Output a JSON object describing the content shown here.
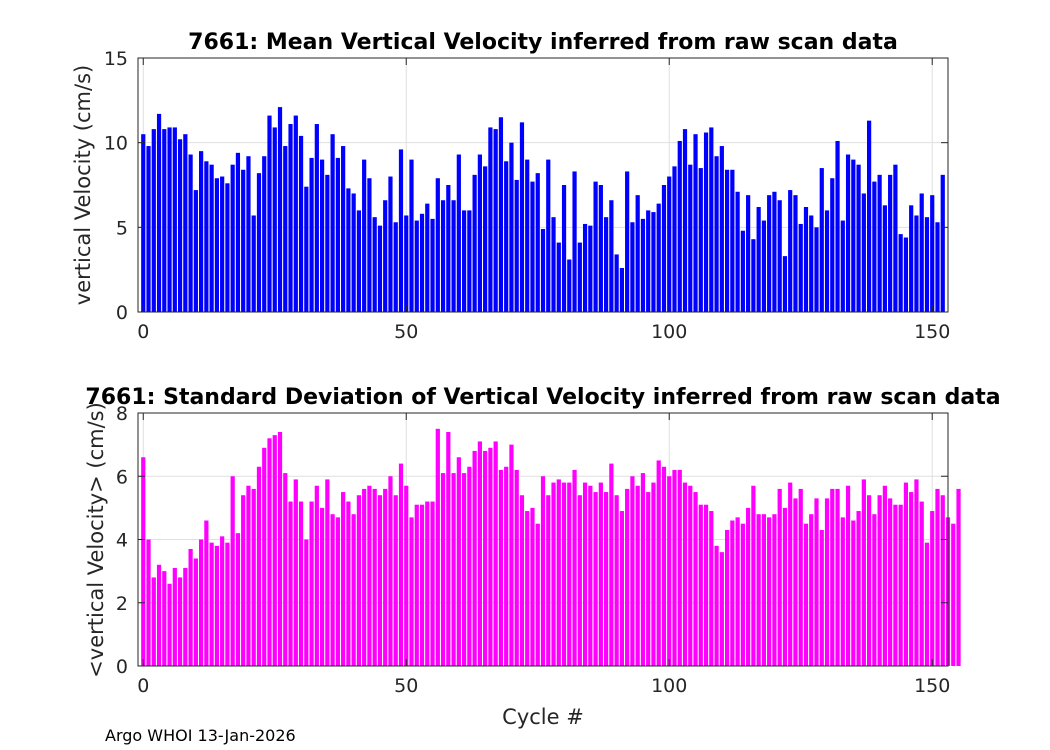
{
  "chart_data": [
    {
      "type": "bar",
      "title": "7661: Mean Vertical Velocity inferred from raw scan data",
      "xlabel": "",
      "ylabel": "vertical Velocity (cm/s)",
      "xlim": [
        -1,
        153
      ],
      "ylim": [
        0,
        15
      ],
      "xticks": [
        0,
        50,
        100,
        150
      ],
      "yticks": [
        0,
        5,
        10,
        15
      ],
      "grid": true,
      "color": "#0000ff",
      "x_start": 0,
      "values": [
        10.5,
        9.8,
        10.8,
        11.7,
        10.8,
        10.9,
        10.9,
        10.2,
        10.5,
        9.3,
        7.2,
        9.5,
        8.9,
        8.7,
        7.9,
        8.0,
        7.6,
        8.7,
        9.4,
        8.4,
        9.2,
        5.7,
        8.2,
        9.2,
        11.6,
        10.9,
        12.1,
        9.8,
        11.1,
        11.6,
        10.4,
        7.4,
        9.1,
        11.1,
        9.0,
        8.1,
        10.5,
        9.1,
        9.8,
        7.3,
        7.0,
        6.0,
        9.0,
        7.9,
        5.6,
        5.1,
        6.6,
        8.0,
        5.3,
        9.6,
        5.7,
        9.0,
        5.4,
        5.8,
        6.4,
        5.5,
        7.9,
        6.6,
        7.5,
        6.6,
        9.3,
        6.0,
        6.0,
        8.1,
        9.3,
        8.6,
        10.9,
        10.8,
        11.5,
        8.9,
        10.0,
        7.8,
        11.2,
        9.0,
        7.7,
        8.2,
        4.9,
        9.0,
        5.6,
        4.1,
        7.5,
        3.1,
        8.3,
        4.1,
        5.2,
        5.1,
        7.7,
        7.5,
        5.6,
        6.6,
        3.4,
        2.6,
        8.3,
        5.3,
        6.9,
        5.5,
        6.0,
        5.9,
        6.4,
        7.5,
        8.0,
        8.6,
        10.1,
        10.8,
        8.7,
        10.5,
        8.5,
        10.6,
        10.9,
        9.2,
        9.8,
        8.4,
        8.4,
        7.1,
        4.8,
        6.9,
        4.3,
        6.2,
        5.4,
        6.9,
        7.1,
        6.6,
        3.3,
        7.2,
        6.9,
        5.2,
        6.2,
        5.7,
        5.0,
        8.5,
        6.0,
        7.9,
        10.1,
        5.4,
        9.3,
        9.0,
        8.7,
        7.0,
        11.3,
        7.7,
        8.1,
        6.3,
        8.1,
        8.7,
        4.6,
        4.4,
        6.3,
        5.7,
        7.0,
        5.6,
        6.9,
        5.3,
        8.1
      ]
    },
    {
      "type": "bar",
      "title": "7661: Standard Deviation of Vertical Velocity inferred from raw scan data",
      "xlabel": "Cycle #",
      "ylabel": "<vertical Velocity> (cm/s)",
      "xlim": [
        -1,
        153
      ],
      "ylim": [
        0,
        8
      ],
      "xticks": [
        0,
        50,
        100,
        150
      ],
      "yticks": [
        0,
        2,
        4,
        6,
        8
      ],
      "grid": true,
      "color": "#ff00ff",
      "x_start": 0,
      "values": [
        6.6,
        4.0,
        2.8,
        3.2,
        3.0,
        2.6,
        3.1,
        2.8,
        3.1,
        3.7,
        3.4,
        4.0,
        4.6,
        3.9,
        3.8,
        4.1,
        3.9,
        6.0,
        4.2,
        5.4,
        5.7,
        5.6,
        6.3,
        6.9,
        7.2,
        7.3,
        7.4,
        6.1,
        5.2,
        5.9,
        5.2,
        4.0,
        5.2,
        5.7,
        5.0,
        5.9,
        4.8,
        4.7,
        5.5,
        5.2,
        4.8,
        5.4,
        5.6,
        5.7,
        5.6,
        5.4,
        5.6,
        6.0,
        5.4,
        6.4,
        5.7,
        4.7,
        5.1,
        5.1,
        5.2,
        5.2,
        7.5,
        6.1,
        7.4,
        6.1,
        6.6,
        6.1,
        6.3,
        6.8,
        7.1,
        6.8,
        6.9,
        7.1,
        6.2,
        6.3,
        7.0,
        6.2,
        5.4,
        4.9,
        5.0,
        4.5,
        6.0,
        5.4,
        5.8,
        5.9,
        5.8,
        5.8,
        6.2,
        5.4,
        5.8,
        5.7,
        5.5,
        5.8,
        5.5,
        6.4,
        5.4,
        4.9,
        5.6,
        6.0,
        5.7,
        6.1,
        5.5,
        5.8,
        6.5,
        6.3,
        6.0,
        6.2,
        6.2,
        5.8,
        5.7,
        5.5,
        5.1,
        5.1,
        4.9,
        3.8,
        3.6,
        4.3,
        4.6,
        4.7,
        4.5,
        5.0,
        5.7,
        4.8,
        4.8,
        4.7,
        4.8,
        5.6,
        5.0,
        5.8,
        5.3,
        5.6,
        4.5,
        4.8,
        5.3,
        4.3,
        5.3,
        5.6,
        5.6,
        4.7,
        5.7,
        4.6,
        4.9,
        5.9,
        5.4,
        4.8,
        5.4,
        5.7,
        5.3,
        5.1,
        5.1,
        5.8,
        5.5,
        5.9,
        5.2,
        3.9,
        4.9,
        5.6,
        5.4,
        4.7,
        4.5,
        5.6
      ]
    }
  ],
  "footer": "Argo WHOI 13-Jan-2026"
}
